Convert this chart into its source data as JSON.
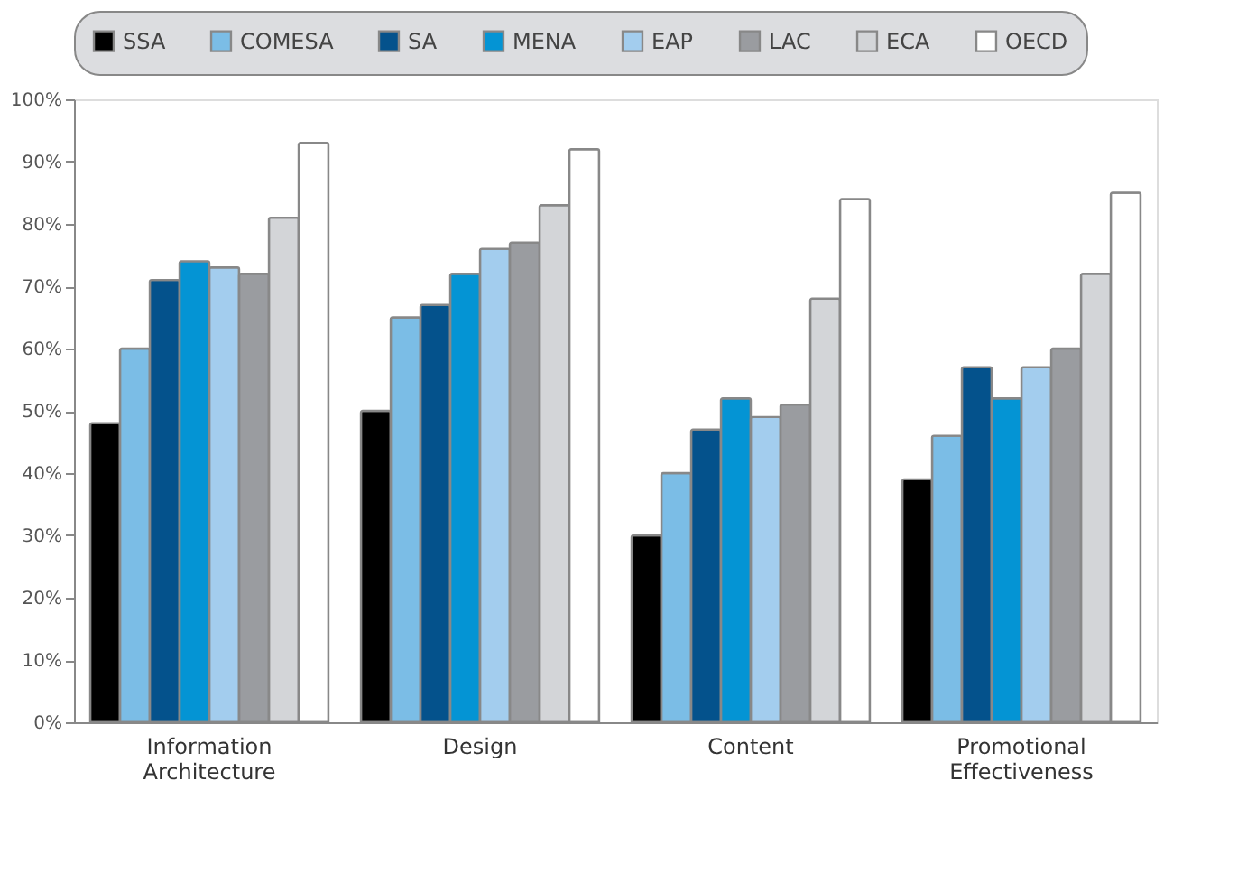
{
  "chart_data": {
    "type": "bar",
    "categories": [
      "Information Architecture",
      "Design",
      "Content",
      "Promotional Effectiveness"
    ],
    "series": [
      {
        "name": "SSA",
        "color": "#000000",
        "values": [
          48,
          50,
          30,
          39
        ]
      },
      {
        "name": "COMESA",
        "color": "#7bbde6",
        "values": [
          60,
          65,
          40,
          46
        ]
      },
      {
        "name": "SA",
        "color": "#04528c",
        "values": [
          71,
          67,
          47,
          57
        ]
      },
      {
        "name": "MENA",
        "color": "#0494d4",
        "values": [
          74,
          72,
          52,
          52
        ]
      },
      {
        "name": "EAP",
        "color": "#a3cdee",
        "values": [
          73,
          76,
          49,
          57
        ]
      },
      {
        "name": "LAC",
        "color": "#9a9ca0",
        "values": [
          72,
          77,
          51,
          60
        ]
      },
      {
        "name": "ECA",
        "color": "#d3d5d8",
        "values": [
          81,
          83,
          68,
          72
        ]
      },
      {
        "name": "OECD",
        "color": "#ffffff",
        "values": [
          93,
          92,
          84,
          85
        ]
      }
    ],
    "ylim": [
      0,
      100
    ],
    "yticks": [
      {
        "value": 0,
        "label": "0%"
      },
      {
        "value": 10,
        "label": "10%"
      },
      {
        "value": 20,
        "label": "20%"
      },
      {
        "value": 30,
        "label": "30%"
      },
      {
        "value": 40,
        "label": "40%"
      },
      {
        "value": 50,
        "label": "50%"
      },
      {
        "value": 60,
        "label": "60%"
      },
      {
        "value": 70,
        "label": "70%"
      },
      {
        "value": 80,
        "label": "80%"
      },
      {
        "value": 90,
        "label": "90%"
      },
      {
        "value": 100,
        "label": "100%"
      }
    ],
    "grid": false,
    "legend": "top"
  }
}
